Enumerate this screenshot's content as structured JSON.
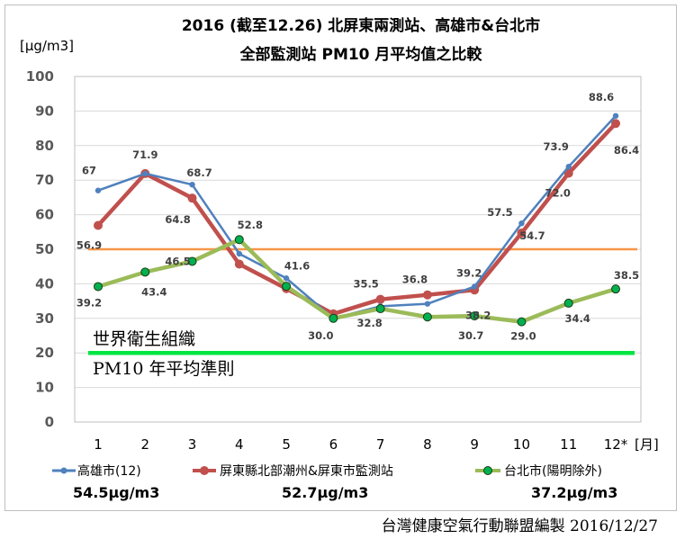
{
  "chart_data": {
    "type": "line",
    "title": "2016 (截至12.26) 北屏東兩測站、高雄市&台北市",
    "subtitle": "全部監測站 PM10 月平均值之比較",
    "ylabel": "[μg/m3]",
    "xlabel": "[月]",
    "ylim": [
      0,
      100
    ],
    "yticks": [
      "0",
      "10",
      "20",
      "30",
      "40",
      "50",
      "60",
      "70",
      "80",
      "90",
      "100"
    ],
    "categories": [
      "1",
      "2",
      "3",
      "4",
      "5",
      "6",
      "7",
      "8",
      "9",
      "10",
      "11",
      "12*"
    ],
    "grid": "horizontal",
    "legend": "bottom",
    "series": [
      {
        "name": "高雄市(12)",
        "color": "#4f81bd",
        "values": [
          67,
          71.9,
          68.7,
          48.7,
          41.6,
          30.0,
          33.5,
          34.2,
          39.2,
          57.5,
          73.9,
          88.6
        ],
        "labels": [
          "67",
          "",
          "68.7",
          "",
          "41.6",
          "",
          "",
          "",
          "39.2",
          "57.5",
          "73.9",
          "88.6"
        ],
        "average": "54.5μg/m3"
      },
      {
        "name": "屏東縣北部潮州&屏東市監測站",
        "color": "#c0504d",
        "values": [
          56.9,
          71.9,
          64.8,
          45.7,
          38.6,
          31.3,
          35.5,
          36.8,
          38.2,
          54.7,
          72.0,
          86.4
        ],
        "labels": [
          "56.9",
          "71.9",
          "64.8",
          "",
          "",
          "",
          "35.5",
          "36.8",
          "38.2",
          "54.7",
          "72.0",
          "86.4"
        ],
        "average": "52.7μg/m3"
      },
      {
        "name": "台北市(陽明除外)",
        "color": "#9bbb59",
        "values": [
          39.2,
          43.4,
          46.5,
          52.8,
          39.3,
          30.0,
          32.8,
          30.4,
          30.7,
          29.0,
          34.4,
          38.5
        ],
        "labels": [
          "39.2",
          "43.4",
          "46.5",
          "52.8",
          "",
          "30.0",
          "32.8",
          "",
          "30.7",
          "29.0",
          "34.4",
          "38.5"
        ],
        "average": "37.2μg/m3"
      }
    ],
    "reference_lines": [
      {
        "value": 50,
        "color": "#f79646"
      },
      {
        "value": 20,
        "color": "#00e640",
        "label_line1": "世界衛生組織",
        "label_line2": "PM10 年平均準則"
      }
    ]
  },
  "footer": {
    "credit": "台灣健康空氣行動聯盟編製 2016/12/27"
  }
}
